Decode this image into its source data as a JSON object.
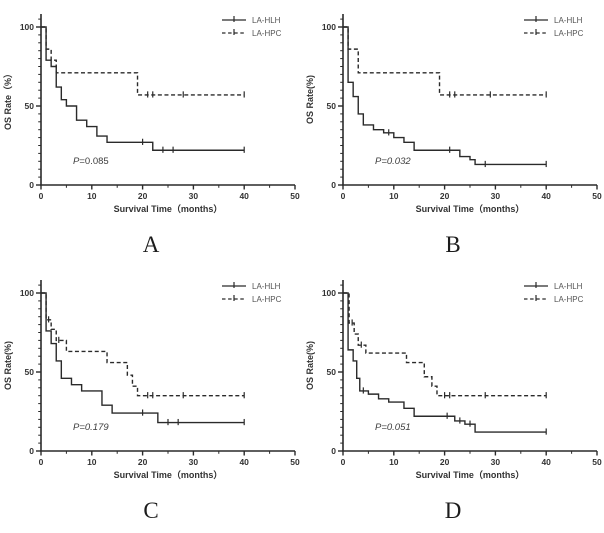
{
  "figure": {
    "background": "#ffffff",
    "line_color": "#2a2a2a",
    "tick_text_color": "#333333",
    "legend_text_color": "#555555",
    "p_text_color": "#3d3d3d",
    "panel_letter_color": "#1c1c1c"
  },
  "chart_data": [
    {
      "type": "line",
      "subtype": "kaplan-meier-step",
      "panel_label": "A",
      "title": "",
      "xlabel": "Survival Time（months）",
      "ylabel": "OS Rate（%）",
      "xlim": [
        0,
        50
      ],
      "ylim": [
        0,
        108
      ],
      "xticks": [
        0,
        10,
        20,
        30,
        40,
        50
      ],
      "yticks": [
        0,
        50,
        100
      ],
      "x_minor_step": 5,
      "y_minor_step": 5,
      "grid": false,
      "legend_position": "top-right",
      "p_label": "P=0.085",
      "p_fully_italic": false,
      "series": [
        {
          "name": "LA-HLH",
          "line": "solid",
          "start": [
            0,
            100
          ],
          "end_x": 40,
          "drops": [
            [
              1,
              79
            ],
            [
              2,
              75
            ],
            [
              3,
              62
            ],
            [
              4,
              54
            ],
            [
              5,
              50
            ],
            [
              7,
              41
            ],
            [
              9,
              37
            ],
            [
              11,
              31
            ],
            [
              13,
              27
            ],
            [
              22,
              22
            ]
          ],
          "censors": [
            [
              20,
              27
            ],
            [
              24,
              22
            ],
            [
              26,
              22
            ],
            [
              40,
              22
            ]
          ]
        },
        {
          "name": "LA-HPC",
          "line": "dashed",
          "start": [
            0,
            100
          ],
          "end_x": 40,
          "drops": [
            [
              1,
              86
            ],
            [
              2,
              79
            ],
            [
              3,
              71
            ],
            [
              19,
              57
            ]
          ],
          "censors": [
            [
              21,
              57
            ],
            [
              22,
              57
            ],
            [
              28,
              57
            ],
            [
              40,
              57
            ]
          ]
        }
      ]
    },
    {
      "type": "line",
      "subtype": "kaplan-meier-step",
      "panel_label": "B",
      "title": "",
      "xlabel": "Survival Time（months）",
      "ylabel": "OS Rate(%)",
      "xlim": [
        0,
        50
      ],
      "ylim": [
        0,
        108
      ],
      "xticks": [
        0,
        10,
        20,
        30,
        40,
        50
      ],
      "yticks": [
        0,
        50,
        100
      ],
      "x_minor_step": 5,
      "y_minor_step": 5,
      "grid": false,
      "legend_position": "top-right",
      "p_label": "P=0.032",
      "p_fully_italic": true,
      "series": [
        {
          "name": "LA-HLH",
          "line": "solid",
          "start": [
            0,
            100
          ],
          "end_x": 40,
          "drops": [
            [
              1,
              65
            ],
            [
              2,
              56
            ],
            [
              3,
              45
            ],
            [
              4,
              38
            ],
            [
              6,
              35
            ],
            [
              8,
              33
            ],
            [
              10,
              30
            ],
            [
              12,
              27
            ],
            [
              14,
              22
            ],
            [
              23,
              18
            ],
            [
              25,
              16
            ],
            [
              26,
              13
            ]
          ],
          "censors": [
            [
              9,
              33
            ],
            [
              21,
              22
            ],
            [
              28,
              13
            ],
            [
              40,
              13
            ]
          ]
        },
        {
          "name": "LA-HPC",
          "line": "dashed",
          "start": [
            0,
            100
          ],
          "end_x": 40,
          "drops": [
            [
              1,
              86
            ],
            [
              3,
              71
            ],
            [
              19,
              57
            ]
          ],
          "censors": [
            [
              21,
              57
            ],
            [
              22,
              57
            ],
            [
              29,
              57
            ],
            [
              40,
              57
            ]
          ]
        }
      ]
    },
    {
      "type": "line",
      "subtype": "kaplan-meier-step",
      "panel_label": "C",
      "title": "",
      "xlabel": "Survival Time（months）",
      "ylabel": "OS Rate(%)",
      "xlim": [
        0,
        50
      ],
      "ylim": [
        0,
        108
      ],
      "xticks": [
        0,
        10,
        20,
        30,
        40,
        50
      ],
      "yticks": [
        0,
        50,
        100
      ],
      "x_minor_step": 5,
      "y_minor_step": 5,
      "grid": false,
      "legend_position": "top-right",
      "p_label": "P=0.179",
      "p_fully_italic": true,
      "series": [
        {
          "name": "LA-HLH",
          "line": "solid",
          "start": [
            0,
            100
          ],
          "end_x": 40,
          "drops": [
            [
              1,
              76
            ],
            [
              2,
              68
            ],
            [
              3,
              57
            ],
            [
              4,
              46
            ],
            [
              6,
              42
            ],
            [
              8,
              38
            ],
            [
              12,
              29
            ],
            [
              14,
              24
            ],
            [
              23,
              18
            ]
          ],
          "censors": [
            [
              20,
              24
            ],
            [
              25,
              18
            ],
            [
              27,
              18
            ],
            [
              40,
              18
            ]
          ]
        },
        {
          "name": "LA-HPC",
          "line": "dashed",
          "start": [
            0,
            100
          ],
          "end_x": 40,
          "drops": [
            [
              1,
              83
            ],
            [
              2,
              77
            ],
            [
              3,
              70
            ],
            [
              5,
              63
            ],
            [
              13,
              56
            ],
            [
              17,
              48
            ],
            [
              18,
              41
            ],
            [
              19,
              35
            ]
          ],
          "censors": [
            [
              1.5,
              83
            ],
            [
              3.5,
              70
            ],
            [
              21,
              35
            ],
            [
              22,
              35
            ],
            [
              28,
              35
            ],
            [
              40,
              35
            ]
          ]
        }
      ]
    },
    {
      "type": "line",
      "subtype": "kaplan-meier-step",
      "panel_label": "D",
      "title": "",
      "xlabel": "Survival Time（months）",
      "ylabel": "OS Rate(%)",
      "xlim": [
        0,
        50
      ],
      "ylim": [
        0,
        108
      ],
      "xticks": [
        0,
        10,
        20,
        30,
        40,
        50
      ],
      "yticks": [
        0,
        50,
        100
      ],
      "x_minor_step": 5,
      "y_minor_step": 5,
      "grid": false,
      "legend_position": "top-right",
      "p_label": "P=0.051",
      "p_fully_italic": true,
      "series": [
        {
          "name": "LA-HLH",
          "line": "solid",
          "start": [
            0,
            100
          ],
          "end_x": 40,
          "drops": [
            [
              1,
              64
            ],
            [
              2,
              57
            ],
            [
              2.7,
              46
            ],
            [
              3.3,
              38
            ],
            [
              5,
              36
            ],
            [
              7,
              33
            ],
            [
              9,
              31
            ],
            [
              12,
              27
            ],
            [
              14,
              22
            ],
            [
              22,
              19
            ],
            [
              24,
              17
            ],
            [
              26,
              12
            ]
          ],
          "censors": [
            [
              4,
              38
            ],
            [
              20.5,
              22
            ],
            [
              23,
              19
            ],
            [
              25,
              17
            ],
            [
              40,
              12
            ]
          ]
        },
        {
          "name": "LA-HPC",
          "line": "dashed",
          "start": [
            0,
            100
          ],
          "end_x": 40,
          "drops": [
            [
              1.2,
              81
            ],
            [
              2.2,
              74
            ],
            [
              3,
              67
            ],
            [
              4.5,
              62
            ],
            [
              12.5,
              56
            ],
            [
              16,
              47
            ],
            [
              17.5,
              41
            ],
            [
              18.5,
              35
            ]
          ],
          "censors": [
            [
              1.8,
              81
            ],
            [
              3.6,
              67
            ],
            [
              20,
              35
            ],
            [
              21,
              35
            ],
            [
              28,
              35
            ],
            [
              40,
              35
            ]
          ]
        }
      ]
    }
  ]
}
